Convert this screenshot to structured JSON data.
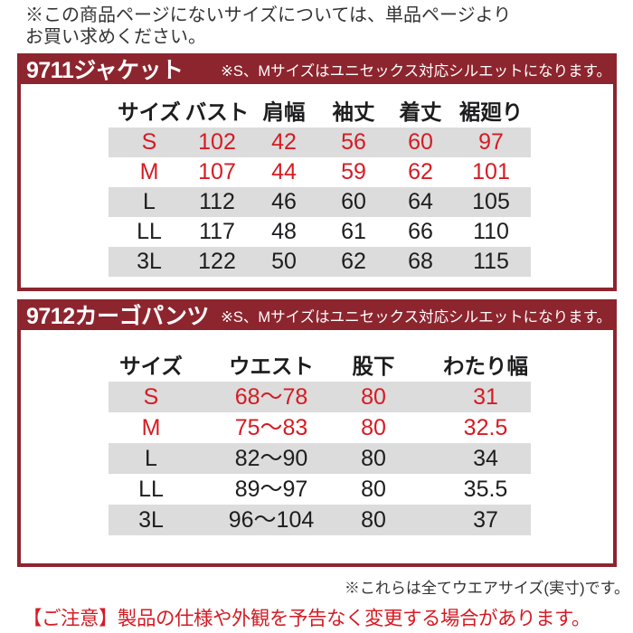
{
  "top_note": {
    "line1": "※この商品ページにないサイズについては、単品ページより",
    "line2": "お買い求めください。"
  },
  "colors": {
    "bar_bg": "#8d252e",
    "accent_red": "#d61b23",
    "stripe_gray": "#dcdcdc",
    "text_black": "#1d1d1f"
  },
  "sections": [
    {
      "title": "9711ジャケット",
      "note": "※S、Mサイズはユニセックス対応シルエットになります。",
      "table": {
        "headers": [
          "サイズ",
          "バスト",
          "肩幅",
          "袖丈",
          "着丈",
          "裾廻り"
        ],
        "rows": [
          {
            "cells": [
              "S",
              "102",
              "42",
              "56",
              "60",
              "97"
            ],
            "red": true
          },
          {
            "cells": [
              "M",
              "107",
              "44",
              "59",
              "62",
              "101"
            ],
            "red": true
          },
          {
            "cells": [
              "L",
              "112",
              "46",
              "60",
              "64",
              "105"
            ],
            "red": false
          },
          {
            "cells": [
              "LL",
              "117",
              "48",
              "61",
              "66",
              "110"
            ],
            "red": false
          },
          {
            "cells": [
              "3L",
              "122",
              "50",
              "62",
              "68",
              "115"
            ],
            "red": false
          }
        ]
      }
    },
    {
      "title": "9712カーゴパンツ",
      "note": "※S、Mサイズはユニセックス対応シルエットになります。",
      "table": {
        "headers": [
          "サイズ",
          "ウエスト",
          "股下",
          "わたり幅"
        ],
        "rows": [
          {
            "cells": [
              "S",
              "68〜78",
              "80",
              "31"
            ],
            "red": true
          },
          {
            "cells": [
              "M",
              "75〜83",
              "80",
              "32.5"
            ],
            "red": true
          },
          {
            "cells": [
              "L",
              "82〜90",
              "80",
              "34"
            ],
            "red": false
          },
          {
            "cells": [
              "LL",
              "89〜97",
              "80",
              "35.5"
            ],
            "red": false
          },
          {
            "cells": [
              "3L",
              "96〜104",
              "80",
              "37"
            ],
            "red": false
          }
        ]
      }
    }
  ],
  "footer": {
    "size_note": "※これらは全てウエアサイズ(実寸)です。",
    "caution": "【ご注意】製品の仕様や外観を予告なく変更する場合があります。"
  }
}
